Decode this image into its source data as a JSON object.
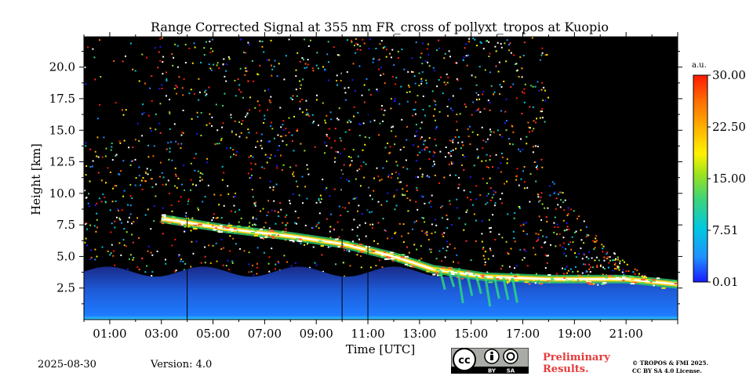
{
  "chart_data": {
    "type": "heatmap",
    "title": "Range Corrected Signal at 355 nm FR_cross of pollyxt_tropos at Kuopio",
    "xlabel": "Time [UTC]",
    "ylabel": "Height [km]",
    "x_unit": "hours UTC",
    "xlim": [
      0,
      23
    ],
    "ylim": [
      0,
      22.4
    ],
    "x_ticks": [
      {
        "value": 1,
        "label": "01:00"
      },
      {
        "value": 3,
        "label": "03:00"
      },
      {
        "value": 5,
        "label": "05:00"
      },
      {
        "value": 7,
        "label": "07:00"
      },
      {
        "value": 9,
        "label": "09:00"
      },
      {
        "value": 11,
        "label": "11:00"
      },
      {
        "value": 13,
        "label": "13:00"
      },
      {
        "value": 15,
        "label": "15:00"
      },
      {
        "value": 17,
        "label": "17:00"
      },
      {
        "value": 19,
        "label": "19:00"
      },
      {
        "value": 21,
        "label": "21:00"
      }
    ],
    "y_ticks": [
      {
        "value": 2.5,
        "label": "2.5"
      },
      {
        "value": 5.0,
        "label": "5.0"
      },
      {
        "value": 7.5,
        "label": "7.5"
      },
      {
        "value": 10.0,
        "label": "10.0"
      },
      {
        "value": 12.5,
        "label": "12.5"
      },
      {
        "value": 15.0,
        "label": "15.0"
      },
      {
        "value": 17.5,
        "label": "17.5"
      },
      {
        "value": 20.0,
        "label": "20.0"
      }
    ],
    "colorbar": {
      "unit": "a.u.",
      "min": 0.01,
      "max": 30.0,
      "ticks": [
        {
          "value": 0.01,
          "label": "0.01"
        },
        {
          "value": 7.51,
          "label": "7.51"
        },
        {
          "value": 15.0,
          "label": "15.00"
        },
        {
          "value": 22.5,
          "label": "22.50"
        },
        {
          "value": 30.0,
          "label": "30.00"
        }
      ],
      "colors": [
        "#1a1aff",
        "#1e90ff",
        "#00c8e0",
        "#3cd47a",
        "#9be21e",
        "#fff200",
        "#ffb000",
        "#ff6a00",
        "#ff1a00"
      ]
    },
    "no_data_color": "#000000",
    "boundary_layer_top_km": 3.8,
    "cloud_layer": {
      "description": "descending aerosol/cloud layer",
      "points": [
        {
          "t": 3.0,
          "h": 8.0
        },
        {
          "t": 5.5,
          "h": 7.2
        },
        {
          "t": 8.0,
          "h": 6.6
        },
        {
          "t": 10.0,
          "h": 6.0
        },
        {
          "t": 12.0,
          "h": 5.0
        },
        {
          "t": 13.5,
          "h": 4.0
        },
        {
          "t": 15.5,
          "h": 3.4
        },
        {
          "t": 18.0,
          "h": 3.2
        },
        {
          "t": 21.0,
          "h": 3.2
        },
        {
          "t": 23.0,
          "h": 2.8
        }
      ]
    },
    "data_gaps_hours": [
      4.0,
      10.0,
      11.0
    ],
    "signal_top_end_hour": 18.0
  },
  "footer": {
    "date": "2025-08-30",
    "version": "Version: 4.0",
    "preliminary_line1": "Preliminary",
    "preliminary_line2": "Results.",
    "copyright_line1": "© TROPOS & FMI 2025.",
    "copyright_line2": "CC BY SA 4.0 License.",
    "license_by": "BY",
    "license_sa": "SA",
    "accent_color": "#e63a3a"
  }
}
